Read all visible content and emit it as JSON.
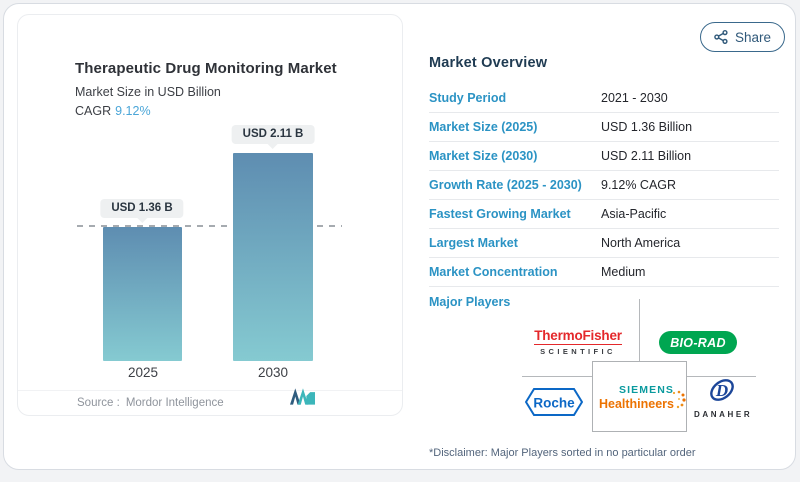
{
  "share": {
    "label": "Share"
  },
  "chart": {
    "title": "Therapeutic Drug Monitoring Market",
    "subtitle": "Market Size in USD Billion",
    "cagr_label": "CAGR",
    "cagr_value": "9.12%",
    "source_label": "Source :",
    "source_value": "Mordor Intelligence"
  },
  "chart_data": {
    "type": "bar",
    "categories": [
      "2025",
      "2030"
    ],
    "values": [
      1.36,
      2.11
    ],
    "value_labels": [
      "USD 1.36 B",
      "USD 2.11 B"
    ],
    "title": "Therapeutic Drug Monitoring Market",
    "ylabel": "Market Size in USD Billion",
    "ylim": [
      0,
      2.3
    ],
    "grid": false,
    "baseline_dashed_at": 1.36,
    "bar_gradient": [
      "#5e8db1",
      "#85cad1"
    ]
  },
  "overview": {
    "heading": "Market Overview",
    "rows": [
      {
        "label": "Study Period",
        "value": "2021 - 2030"
      },
      {
        "label": "Market Size (2025)",
        "value": "USD 1.36 Billion"
      },
      {
        "label": "Market Size (2030)",
        "value": "USD 2.11 Billion"
      },
      {
        "label": "Growth Rate (2025 - 2030)",
        "value": "9.12% CAGR"
      },
      {
        "label": "Fastest Growing Market",
        "value": "Asia-Pacific"
      },
      {
        "label": "Largest Market",
        "value": "North America"
      },
      {
        "label": "Market Concentration",
        "value": "Medium"
      }
    ],
    "major_players_label": "Major Players",
    "disclaimer": "*Disclaimer: Major Players sorted in no particular order"
  },
  "logos": {
    "thermofisher_line1": "ThermoFisher",
    "thermofisher_line2": "SCIENTIFIC",
    "biorad": "BIO-RAD",
    "roche": "Roche",
    "siemens_line1": "SIEMENS",
    "siemens_line2": "Healthineers",
    "danaher": "DANAHER"
  },
  "colors": {
    "accent_blue": "#2b93c4",
    "cagr_blue": "#4ba6d8",
    "heading_navy": "#1f3b52",
    "bar_top": "#5e8db1",
    "bar_bottom": "#85cad1",
    "thermofisher_red": "#e4282b",
    "biorad_green": "#00a651",
    "roche_blue": "#0c68c6",
    "siemens_petrol": "#0a9a9e",
    "healthineers_orange": "#ec7302",
    "danaher_navy": "#1c4699",
    "share_border": "#3a698c"
  }
}
